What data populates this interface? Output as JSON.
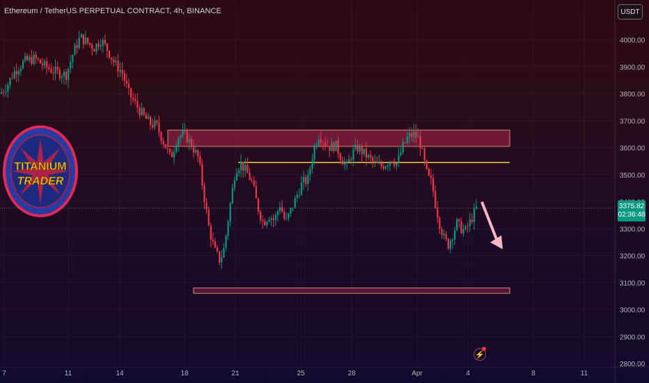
{
  "header": {
    "title": "Ethereum / TetherUS PERPETUAL CONTRACT, 4h, BINANCE",
    "currency": "USDT"
  },
  "price_tag": {
    "price": "3375.82",
    "countdown": "02:36:48"
  },
  "logo": {
    "line1": "TITANIUM",
    "line2": "TRADER"
  },
  "colors": {
    "up": "#089981",
    "down": "#f23645",
    "level_line": "#f5d547",
    "zone": "#d98a6a"
  },
  "chart_data": {
    "type": "candlestick",
    "y_axis": {
      "min": 2800,
      "max": 4000,
      "tick_labels": [
        "4000.00",
        "3900.00",
        "3800.00",
        "3700.00",
        "3600.00",
        "3500.00",
        "3400.00",
        "3300.00",
        "3200.00",
        "3100.00",
        "3000.00",
        "2900.00",
        "2800.00"
      ]
    },
    "x_axis": {
      "tick_labels": [
        "7",
        "11",
        "14",
        "18",
        "21",
        "25",
        "28",
        "Apr",
        "4",
        "8",
        "11"
      ]
    },
    "current_price": 3375.82,
    "resistance_zone": [
      3605,
      3665
    ],
    "support_zone": [
      3060,
      3080
    ],
    "level_line": 3545
  }
}
